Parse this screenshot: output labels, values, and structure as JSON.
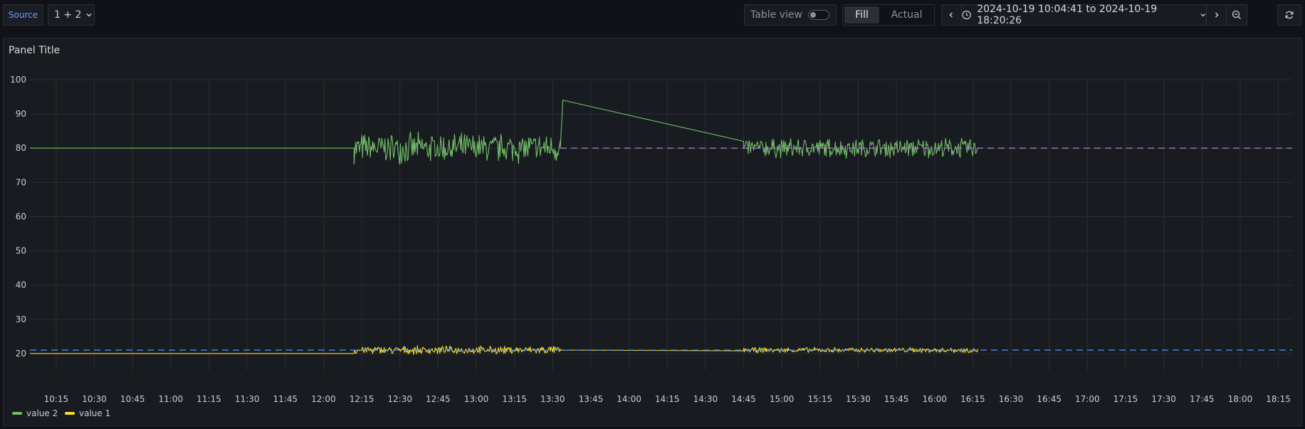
{
  "toolbar": {
    "source_label": "Source",
    "query_label": "1 + 2",
    "table_view_label": "Table view",
    "fill_label": "Fill",
    "actual_label": "Actual",
    "time_range": "2024-10-19 10:04:41 to 2024-10-19 18:20:26"
  },
  "panel": {
    "title": "Panel Title"
  },
  "colors": {
    "value2": "#73bf69",
    "value1": "#fade2a",
    "threshold_purple": "#b877d9",
    "threshold_blue": "#5794f2",
    "grid": "#2b2d33",
    "tick": "#ccccdc"
  },
  "chart_data": {
    "type": "line",
    "title": "Panel Title",
    "xlabel": "",
    "ylabel": "",
    "x_range": [
      "10:04:41",
      "18:20:26"
    ],
    "ylim": [
      15,
      100
    ],
    "y_ticks": [
      20,
      30,
      40,
      50,
      60,
      70,
      80,
      90,
      100
    ],
    "x_ticks": [
      "10:15",
      "10:30",
      "10:45",
      "11:00",
      "11:15",
      "11:30",
      "11:45",
      "12:00",
      "12:15",
      "12:30",
      "12:45",
      "13:00",
      "13:15",
      "13:30",
      "13:45",
      "14:00",
      "14:15",
      "14:30",
      "14:45",
      "15:00",
      "15:15",
      "15:30",
      "15:45",
      "16:00",
      "16:15",
      "16:30",
      "16:45",
      "17:00",
      "17:15",
      "17:30",
      "17:45",
      "18:00",
      "18:15"
    ],
    "grid": true,
    "legend_position": "bottom-left",
    "thresholds": [
      {
        "value": 80,
        "style": "dashed",
        "color": "#b877d9",
        "from": "13:33"
      },
      {
        "value": 21,
        "style": "dashed",
        "color": "#5794f2",
        "from": "10:04:41"
      }
    ],
    "series": [
      {
        "name": "value 2",
        "color": "#73bf69",
        "segments": [
          {
            "x": [
              "10:04:41",
              "12:12"
            ],
            "y": [
              80,
              80
            ],
            "noise": 0
          },
          {
            "x": [
              "12:12",
              "13:33"
            ],
            "y": [
              80,
              80
            ],
            "noise": 4.5
          },
          {
            "x": [
              "13:33",
              "13:34",
              "14:45"
            ],
            "y": [
              80,
              94,
              82
            ],
            "noise": 0
          },
          {
            "x": [
              "14:45",
              "16:17"
            ],
            "y": [
              80,
              80
            ],
            "noise": 3
          }
        ]
      },
      {
        "name": "value 1",
        "color": "#fade2a",
        "segments": [
          {
            "x": [
              "10:04:41",
              "12:12"
            ],
            "y": [
              20,
              20
            ],
            "noise": 0
          },
          {
            "x": [
              "12:12",
              "13:33"
            ],
            "y": [
              21,
              21
            ],
            "noise": 1.2
          },
          {
            "x": [
              "13:33",
              "14:45"
            ],
            "y": [
              21,
              20.8
            ],
            "noise": 0
          },
          {
            "x": [
              "14:45",
              "16:17"
            ],
            "y": [
              21,
              21
            ],
            "noise": 0.8
          }
        ]
      }
    ]
  }
}
